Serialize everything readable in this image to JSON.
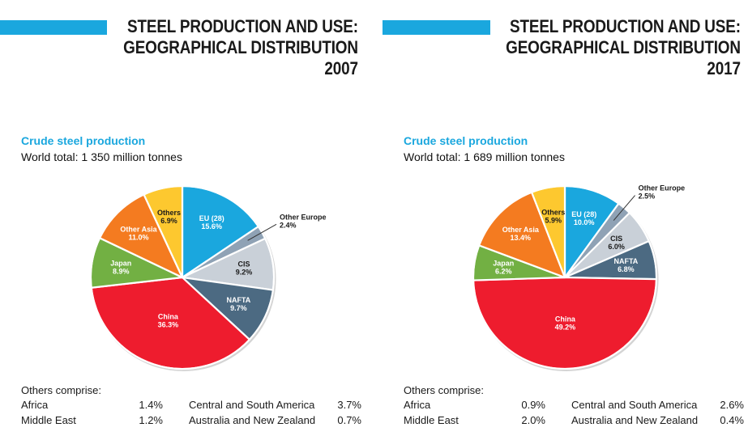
{
  "chart_data": [
    {
      "type": "pie",
      "title": [
        "STEEL PRODUCTION AND USE:",
        "GEOGRAPHICAL DISTRIBUTION",
        "2007"
      ],
      "subtitle": "Crude steel production",
      "world_total": "World total: 1 350 million tonnes",
      "slices": [
        {
          "name": "EU (28)",
          "value": 15.6,
          "label": "15.6%",
          "color": "#1aa7de"
        },
        {
          "name": "Other Europe",
          "value": 2.4,
          "label": "2.4%",
          "color": "#8fa2b5"
        },
        {
          "name": "CIS",
          "value": 9.2,
          "label": "9.2%",
          "color": "#c9d0d8"
        },
        {
          "name": "NAFTA",
          "value": 9.7,
          "label": "9.7%",
          "color": "#4c6a82"
        },
        {
          "name": "China",
          "value": 36.3,
          "label": "36.3%",
          "color": "#ee1c2e"
        },
        {
          "name": "Japan",
          "value": 8.9,
          "label": "8.9%",
          "color": "#72b043"
        },
        {
          "name": "Other Asia",
          "value": 11.0,
          "label": "11.0%",
          "color": "#f47b20"
        },
        {
          "name": "Others",
          "value": 6.9,
          "label": "6.9%",
          "color": "#fdc82f"
        }
      ],
      "others": {
        "title": "Others comprise:",
        "rows": [
          [
            {
              "name": "Africa",
              "value": "1.4%"
            },
            {
              "name": "Central and South America",
              "value": "3.7%"
            }
          ],
          [
            {
              "name": "Middle East",
              "value": "1.2%"
            },
            {
              "name": "Australia and New Zealand",
              "value": "0.7%"
            }
          ]
        ]
      }
    },
    {
      "type": "pie",
      "title": [
        "STEEL PRODUCTION AND USE:",
        "GEOGRAPHICAL DISTRIBUTION",
        "2017"
      ],
      "subtitle": "Crude steel production",
      "world_total": "World total: 1 689 million tonnes",
      "slices": [
        {
          "name": "EU (28)",
          "value": 10.0,
          "label": "10.0%",
          "color": "#1aa7de"
        },
        {
          "name": "Other Europe",
          "value": 2.5,
          "label": "2.5%",
          "color": "#8fa2b5"
        },
        {
          "name": "CIS",
          "value": 6.0,
          "label": "6.0%",
          "color": "#c9d0d8"
        },
        {
          "name": "NAFTA",
          "value": 6.8,
          "label": "6.8%",
          "color": "#4c6a82"
        },
        {
          "name": "China",
          "value": 49.2,
          "label": "49.2%",
          "color": "#ee1c2e"
        },
        {
          "name": "Japan",
          "value": 6.2,
          "label": "6.2%",
          "color": "#72b043"
        },
        {
          "name": "Other Asia",
          "value": 13.4,
          "label": "13.4%",
          "color": "#f47b20"
        },
        {
          "name": "Others",
          "value": 5.9,
          "label": "5.9%",
          "color": "#fdc82f"
        }
      ],
      "others": {
        "title": "Others comprise:",
        "rows": [
          [
            {
              "name": "Africa",
              "value": "0.9%"
            },
            {
              "name": "Central and South America",
              "value": "2.6%"
            }
          ],
          [
            {
              "name": "Middle East",
              "value": "2.0%"
            },
            {
              "name": "Australia and New Zealand",
              "value": "0.4%"
            }
          ]
        ]
      }
    }
  ]
}
